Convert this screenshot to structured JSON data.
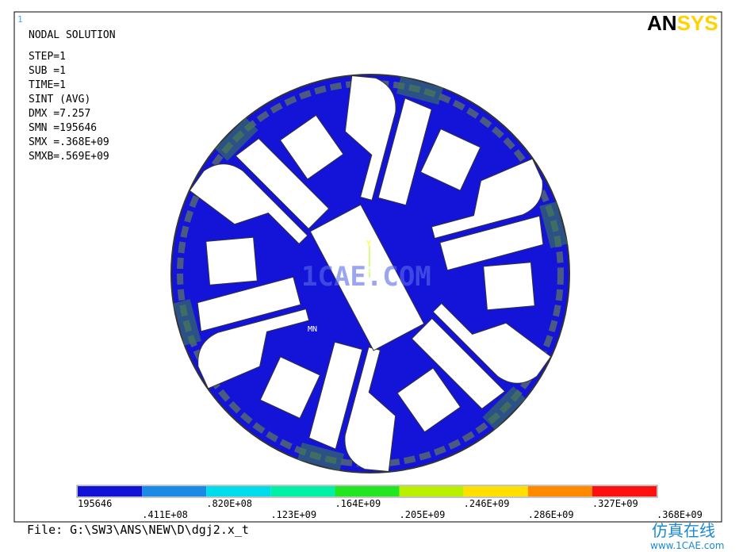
{
  "window_number": "1",
  "header": {
    "title": "NODAL SOLUTION",
    "lines": [
      "STEP=1",
      "SUB =1",
      "TIME=1",
      "SINT      (AVG)",
      "DMX =7.257",
      "SMN =195646",
      "SMX =.368E+09",
      "SMXB=.569E+09"
    ]
  },
  "logo": {
    "part_a": "AN",
    "part_b": "SYS"
  },
  "model": {
    "triad_y": "Y",
    "triad_z": "Z",
    "min_marker": "MN",
    "watermark": "1CAE.COM"
  },
  "legend": {
    "colors": [
      "#1212d6",
      "#1a8ae6",
      "#00dcec",
      "#00f0a8",
      "#22e622",
      "#b8f000",
      "#ffe000",
      "#ff8a00",
      "#ff1010"
    ],
    "labels": [
      "195646",
      ".411E+08",
      ".820E+08",
      ".123E+09",
      ".164E+09",
      ".205E+09",
      ".246E+09",
      ".286E+09",
      ".327E+09",
      ".368E+09"
    ]
  },
  "file": "File: G:\\SW3\\ANS\\NEW\\D\\dgj2.x_t",
  "site": {
    "name": "仿真在线",
    "url": "www.1CAE.com"
  }
}
